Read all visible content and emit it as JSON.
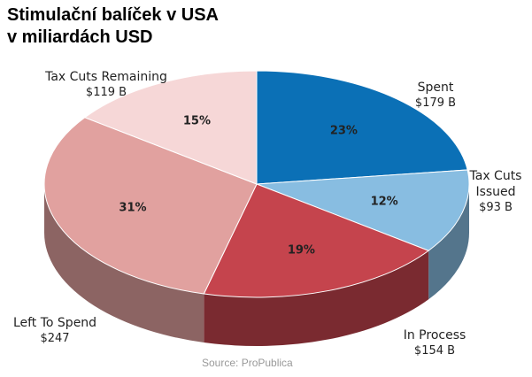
{
  "chart_data": {
    "type": "pie",
    "title": "Stimulační balíček v USA",
    "subtitle": "v miliardách USD",
    "categories": [
      "Spent",
      "Tax Cuts Issued",
      "In Process",
      "Left To Spend",
      "Tax Cuts Remaining"
    ],
    "values": [
      23,
      12,
      19,
      31,
      15
    ],
    "value_labels": [
      "23%",
      "12%",
      "19%",
      "31%",
      "15%"
    ],
    "amounts": [
      "$179 B",
      "$93 B",
      "$154 B",
      "$247",
      "$119 B"
    ],
    "colors": [
      "#0b70b6",
      "#88bde1",
      "#c5444d",
      "#e1a19f",
      "#f6d7d7"
    ],
    "source": "Source: ProPublica"
  }
}
